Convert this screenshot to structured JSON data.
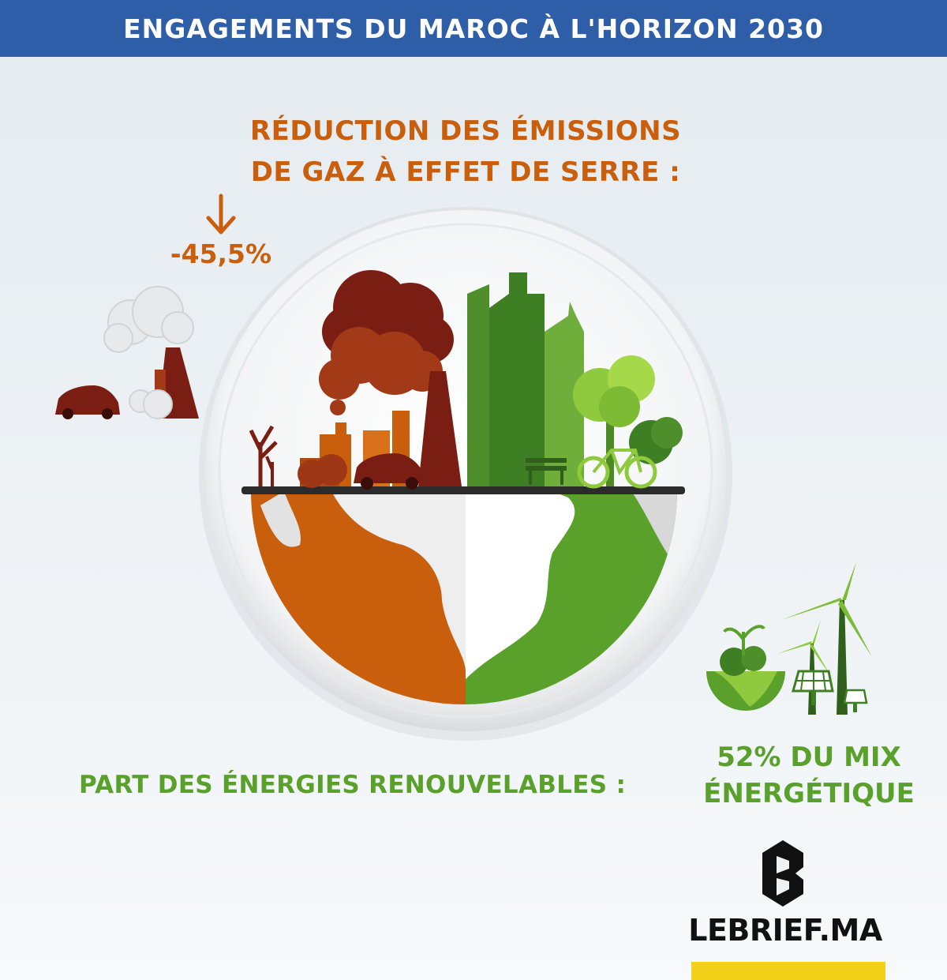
{
  "header": {
    "title": "ENGAGEMENTS DU MAROC À L'HORIZON 2030"
  },
  "emissions": {
    "label_line1": "RÉDUCTION DES ÉMISSIONS",
    "label_line2": "DE GAZ À EFFET DE SERRE :",
    "value": "-45,5%",
    "arrow_icon": "down-arrow-icon"
  },
  "renewables": {
    "label": "PART DES ÉNERGIES RENOUVELABLES :",
    "value_line1": "52% DU MIX",
    "value_line2": "ÉNERGÉTIQUE"
  },
  "brand": {
    "name": "LEBRIEF.MA",
    "logo_icon": "lebrief-b-logo-icon"
  },
  "colors": {
    "header_bg": "#2f5ea8",
    "pollution_orange": "#c95f0d",
    "pollution_red": "#7a1e14",
    "green": "#5aa12c",
    "logo_yellow": "#f3d11a"
  }
}
